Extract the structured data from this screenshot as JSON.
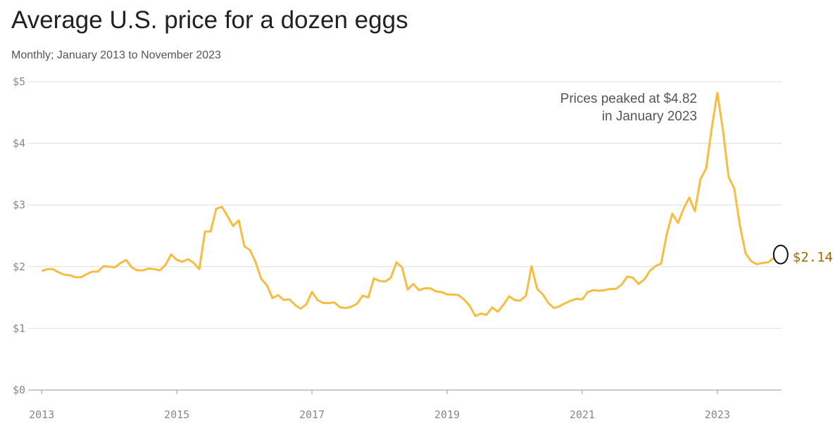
{
  "chart_data": {
    "type": "line",
    "title": "Average U.S. price for a dozen eggs",
    "subtitle": "Monthly; January 2013 to November 2023",
    "annotation": [
      "Prices peaked at $4.82",
      "in January 2023"
    ],
    "end_label": "$2.14",
    "x": [
      2013,
      2013.083,
      2013.167,
      2013.25,
      2013.333,
      2013.417,
      2013.5,
      2013.583,
      2013.667,
      2013.75,
      2013.833,
      2013.917,
      2014,
      2014.083,
      2014.167,
      2014.25,
      2014.333,
      2014.417,
      2014.5,
      2014.583,
      2014.667,
      2014.75,
      2014.833,
      2014.917,
      2015,
      2015.083,
      2015.167,
      2015.25,
      2015.333,
      2015.417,
      2015.5,
      2015.583,
      2015.667,
      2015.75,
      2015.833,
      2015.917,
      2016,
      2016.083,
      2016.167,
      2016.25,
      2016.333,
      2016.417,
      2016.5,
      2016.583,
      2016.667,
      2016.75,
      2016.833,
      2016.917,
      2017,
      2017.083,
      2017.167,
      2017.25,
      2017.333,
      2017.417,
      2017.5,
      2017.583,
      2017.667,
      2017.75,
      2017.833,
      2017.917,
      2018,
      2018.083,
      2018.167,
      2018.25,
      2018.333,
      2018.417,
      2018.5,
      2018.583,
      2018.667,
      2018.75,
      2018.833,
      2018.917,
      2019,
      2019.083,
      2019.167,
      2019.25,
      2019.333,
      2019.417,
      2019.5,
      2019.583,
      2019.667,
      2019.75,
      2019.833,
      2019.917,
      2020,
      2020.083,
      2020.167,
      2020.25,
      2020.333,
      2020.417,
      2020.5,
      2020.583,
      2020.667,
      2020.75,
      2020.833,
      2020.917,
      2021,
      2021.083,
      2021.167,
      2021.25,
      2021.333,
      2021.417,
      2021.5,
      2021.583,
      2021.667,
      2021.75,
      2021.833,
      2021.917,
      2022,
      2022.083,
      2022.167,
      2022.25,
      2022.333,
      2022.417,
      2022.5,
      2022.583,
      2022.667,
      2022.75,
      2022.833,
      2022.917,
      2023,
      2023.083,
      2023.167,
      2023.25,
      2023.333,
      2023.417,
      2023.5,
      2023.583,
      2023.667,
      2023.75,
      2023.833
    ],
    "series": [
      {
        "color": "#f6bd41",
        "values": [
          1.93,
          1.96,
          1.96,
          1.91,
          1.87,
          1.86,
          1.83,
          1.83,
          1.88,
          1.92,
          1.92,
          2.01,
          2.0,
          1.99,
          2.06,
          2.11,
          1.99,
          1.94,
          1.94,
          1.97,
          1.96,
          1.94,
          2.03,
          2.2,
          2.11,
          2.08,
          2.12,
          2.06,
          1.96,
          2.57,
          2.57,
          2.94,
          2.97,
          2.82,
          2.66,
          2.75,
          2.33,
          2.27,
          2.07,
          1.8,
          1.7,
          1.49,
          1.54,
          1.46,
          1.47,
          1.38,
          1.32,
          1.39,
          1.59,
          1.46,
          1.41,
          1.41,
          1.42,
          1.34,
          1.33,
          1.35,
          1.4,
          1.53,
          1.5,
          1.81,
          1.77,
          1.76,
          1.82,
          2.07,
          1.99,
          1.63,
          1.72,
          1.62,
          1.65,
          1.65,
          1.6,
          1.59,
          1.55,
          1.55,
          1.54,
          1.47,
          1.37,
          1.2,
          1.24,
          1.22,
          1.34,
          1.27,
          1.38,
          1.52,
          1.46,
          1.45,
          1.53,
          2.01,
          1.64,
          1.55,
          1.41,
          1.33,
          1.36,
          1.41,
          1.45,
          1.48,
          1.47,
          1.59,
          1.62,
          1.61,
          1.62,
          1.64,
          1.64,
          1.71,
          1.84,
          1.82,
          1.72,
          1.79,
          1.93,
          2.01,
          2.05,
          2.52,
          2.86,
          2.71,
          2.94,
          3.12,
          2.9,
          3.42,
          3.59,
          4.25,
          4.82,
          4.21,
          3.45,
          3.27,
          2.67,
          2.22,
          2.09,
          2.04,
          2.06,
          2.07,
          2.14
        ]
      }
    ],
    "xlim": [
      2012.8,
      2023.95
    ],
    "xticks": [
      2013,
      2015,
      2017,
      2019,
      2021,
      2023
    ],
    "ylim": [
      0,
      5
    ],
    "yticks": [
      {
        "value": 0,
        "label": "$0"
      },
      {
        "value": 1,
        "label": "$1"
      },
      {
        "value": 2,
        "label": "$2"
      },
      {
        "value": 3,
        "label": "$3"
      },
      {
        "value": 4,
        "label": "$4"
      },
      {
        "value": 5,
        "label": "$5"
      }
    ],
    "grid": true
  }
}
